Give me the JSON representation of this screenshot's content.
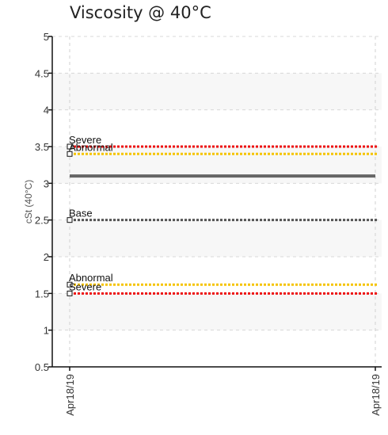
{
  "chart_data": {
    "type": "line",
    "title": "Viscosity @ 40°C",
    "ylabel": "cSt (40°C)",
    "xlabel": "",
    "ylim": [
      0.5,
      5
    ],
    "yticks": [
      "0.5",
      "1",
      "1.5",
      "2",
      "2.5",
      "3",
      "3.5",
      "4",
      "4.5",
      "5"
    ],
    "x": [
      "Apr18/19",
      "Apr18/19"
    ],
    "grid": true,
    "series": [
      {
        "name": "",
        "values": [
          3.1,
          3.1
        ],
        "color": "#666666",
        "style": "solid"
      }
    ],
    "reference_lines": [
      {
        "label": "Severe",
        "value": 3.5,
        "color": "#ee1111",
        "style": "dotted"
      },
      {
        "label": "Abnormal",
        "value": 3.4,
        "color": "#f5c400",
        "style": "dotted"
      },
      {
        "label": "Base",
        "value": 2.5,
        "color": "#555555",
        "style": "dotted"
      },
      {
        "label": "Abnormal",
        "value": 1.62,
        "color": "#f5c400",
        "style": "dotted"
      },
      {
        "label": "Severe",
        "value": 1.5,
        "color": "#ee1111",
        "style": "dotted"
      }
    ],
    "band_colors": [
      "#f7f7f7",
      "#ffffff"
    ]
  }
}
